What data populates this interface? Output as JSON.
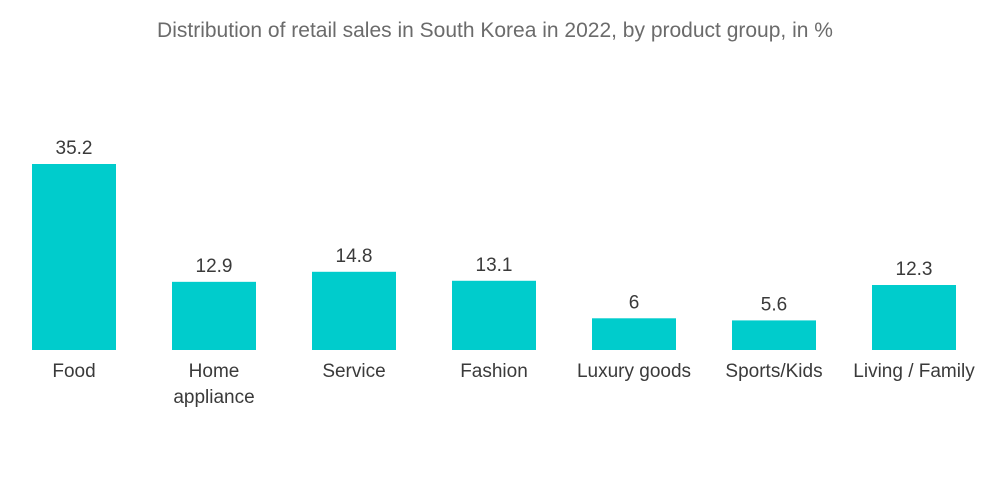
{
  "chart_data": {
    "type": "bar",
    "title": "Distribution of retail sales in South Korea in 2022, by product group, in %",
    "xlabel": "",
    "ylabel": "",
    "categories": [
      "Food",
      "Home appliance",
      "Service",
      "Fashion",
      "Luxury goods",
      "Sports/Kids",
      "Living / Family"
    ],
    "category_lines": [
      [
        "Food"
      ],
      [
        "Home",
        "appliance"
      ],
      [
        "Service"
      ],
      [
        "Fashion"
      ],
      [
        "Luxury goods"
      ],
      [
        "Sports/Kids"
      ],
      [
        "Living / Family"
      ]
    ],
    "values": [
      35.2,
      12.9,
      14.8,
      13.1,
      6,
      5.6,
      12.3
    ],
    "value_labels": [
      "35.2",
      "12.9",
      "14.8",
      "13.1",
      "6",
      "5.6",
      "12.3"
    ],
    "ylim": [
      0,
      35.2
    ],
    "grid": false,
    "legend": "none",
    "bar_color": "#00cccc"
  }
}
